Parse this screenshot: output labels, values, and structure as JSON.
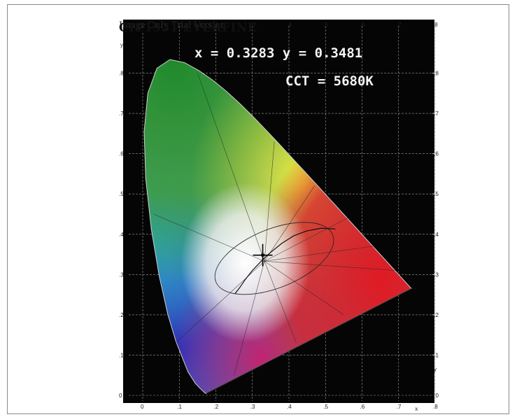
{
  "chart_data": {
    "type": "scatter",
    "title": "CIE1931 EVERFINE",
    "watermark": "Image Only Trial Version",
    "xlim": [
      0,
      0.8
    ],
    "ylim": [
      0,
      0.9
    ],
    "x_ticks": [
      "0",
      ".1",
      ".2",
      ".3",
      ".4",
      ".5",
      ".6",
      ".7",
      ".8"
    ],
    "y_ticks": [
      "0",
      ".1",
      ".2",
      ".3",
      ".4",
      ".5",
      ".6",
      ".7",
      ".8"
    ],
    "x_axis_letter": "x",
    "y_axis_letter": "y",
    "points": [
      {
        "x": 0.3283,
        "y": 0.3481
      }
    ],
    "readout": {
      "coords": "x = 0.3283 y = 0.3481",
      "cct": "CCT = 5680K"
    }
  }
}
